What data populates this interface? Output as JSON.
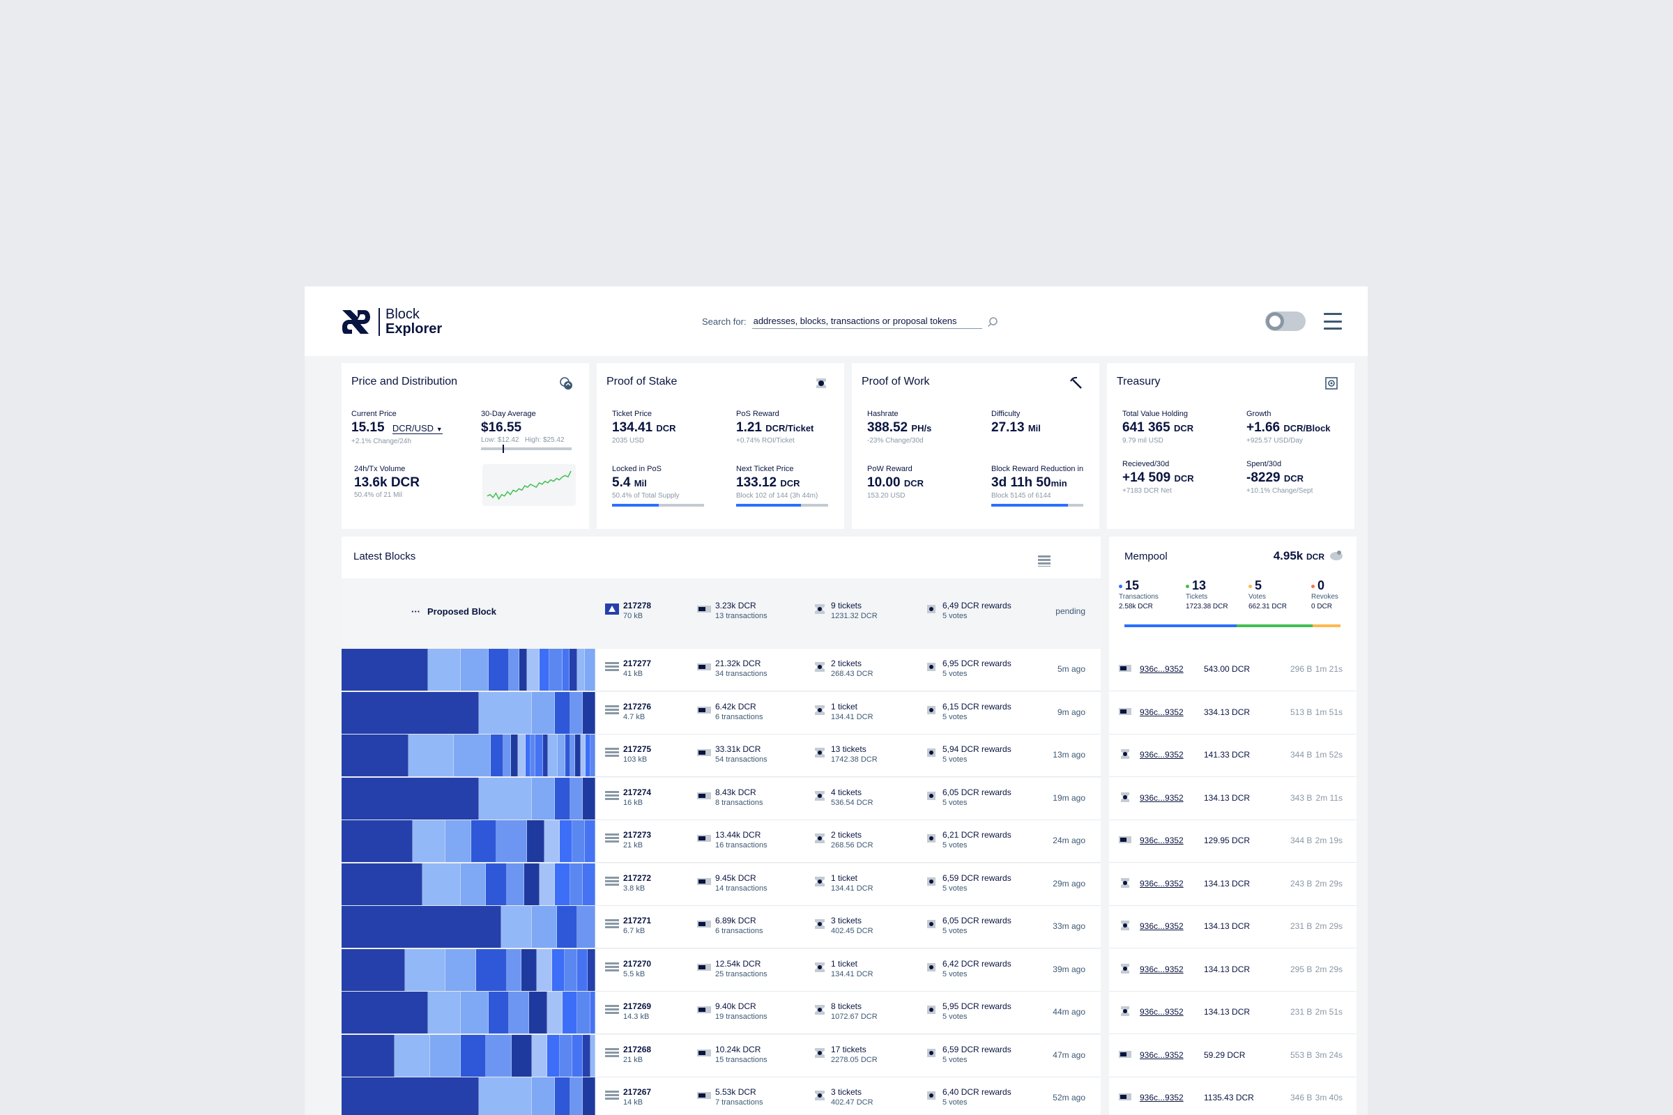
{
  "header": {
    "logo_line1": "Block",
    "logo_line2": "Explorer",
    "search_label": "Search for:",
    "search_placeholder": "addresses, blocks, transactions or proposal tokens"
  },
  "price": {
    "title": "Price and Distribution",
    "current_label": "Current Price",
    "current_value": "15.15",
    "current_unit": "DCR/USD",
    "current_sub": "+2.1% Change/24h",
    "avg_label": "30-Day Average",
    "avg_value": "$16.55",
    "avg_low": "Low: $12.42",
    "avg_high": "High: $25.42",
    "volume_label": "24h/Tx Volume",
    "volume_value": "13.6k DCR",
    "volume_sub": "50.4% of 21 Mil",
    "sparkline": [
      5,
      6,
      4,
      7,
      3,
      6,
      5,
      8,
      6,
      9,
      8,
      10,
      9,
      12,
      11,
      13,
      12,
      11,
      14,
      13,
      15,
      14,
      16,
      15,
      17,
      16,
      18,
      19,
      18,
      22
    ]
  },
  "stake": {
    "title": "Proof of Stake",
    "ticket_price_label": "Ticket Price",
    "ticket_price_value": "134.41",
    "ticket_price_unit": "DCR",
    "ticket_price_sub": "2035 USD",
    "pos_reward_label": "PoS Reward",
    "pos_reward_value": "1.21",
    "pos_reward_unit": "DCR/Ticket",
    "pos_reward_sub": "+0.74% ROI/Ticket",
    "locked_label": "Locked in PoS",
    "locked_value": "5.4",
    "locked_unit": "Mil",
    "locked_sub": "50.4% of Total Supply",
    "locked_progress": 0.504,
    "next_label": "Next Ticket Price",
    "next_value": "133.12",
    "next_unit": "DCR",
    "next_sub": "Block 102 of 144 (3h 44m)",
    "next_progress": 0.708
  },
  "work": {
    "title": "Proof of Work",
    "hashrate_label": "Hashrate",
    "hashrate_value": "388.52",
    "hashrate_unit": "PH/s",
    "hashrate_sub": "-23% Change/30d",
    "difficulty_label": "Difficulty",
    "difficulty_value": "27.13",
    "difficulty_unit": "Mil",
    "reward_label": "PoW Reward",
    "reward_value": "10.00",
    "reward_unit": "DCR",
    "reward_sub": "153.20 USD",
    "reduction_label": "Block Reward Reduction in",
    "reduction_value_d": "3d 11h 50",
    "reduction_value_unit": "min",
    "reduction_sub": "Block 5145 of 6144",
    "reduction_progress": 0.837
  },
  "treasury": {
    "title": "Treasury",
    "holding_label": "Total Value Holding",
    "holding_value": "641 365",
    "holding_unit": "DCR",
    "holding_sub": "9.79 mil USD",
    "growth_label": "Growth",
    "growth_value": "+1.66",
    "growth_unit": "DCR/Block",
    "growth_sub": "+925.57 USD/Day",
    "received_label": "Recieved/30d",
    "received_value": "+14 509",
    "received_unit": "DCR",
    "received_sub": "+7183 DCR Net",
    "spent_label": "Spent/30d",
    "spent_value": "-8229",
    "spent_unit": "DCR",
    "spent_sub": "+10.1% Change/Sept"
  },
  "latest": {
    "title": "Latest Blocks",
    "proposed": {
      "label": "Proposed Block",
      "height": "217278",
      "size": "70 kB",
      "value": "3.23k DCR",
      "txs": "13 transactions",
      "tickets": "9 tickets",
      "tickets_value": "1231.32 DCR",
      "rewards": "6,49 DCR rewards",
      "votes": "5 votes",
      "status": "pending"
    },
    "blocks": [
      {
        "height": "217277",
        "size": "41 kB",
        "value": "21.32k DCR",
        "txs": "34 transactions",
        "tickets": "2 tickets",
        "tickets_value": "268.43 DCR",
        "rewards": "6,95 DCR rewards",
        "votes": "5 votes",
        "age": "5m ago"
      },
      {
        "height": "217276",
        "size": "4.7 kB",
        "value": "6.42k DCR",
        "txs": "6 transactions",
        "tickets": "1 ticket",
        "tickets_value": "134.41 DCR",
        "rewards": "6,15 DCR rewards",
        "votes": "5 votes",
        "age": "9m ago"
      },
      {
        "height": "217275",
        "size": "103 kB",
        "value": "33.31k DCR",
        "txs": "54 transactions",
        "tickets": "13 tickets",
        "tickets_value": "1742.38 DCR",
        "rewards": "5,94 DCR rewards",
        "votes": "5 votes",
        "age": "13m ago"
      },
      {
        "height": "217274",
        "size": "16 kB",
        "value": "8.43k DCR",
        "txs": "8 transactions",
        "tickets": "4 tickets",
        "tickets_value": "536.54 DCR",
        "rewards": "6,05 DCR rewards",
        "votes": "5 votes",
        "age": "19m ago"
      },
      {
        "height": "217273",
        "size": "21 kB",
        "value": "13.44k DCR",
        "txs": "16 transactions",
        "tickets": "2 tickets",
        "tickets_value": "268.56 DCR",
        "rewards": "6,21 DCR rewards",
        "votes": "5 votes",
        "age": "24m ago"
      },
      {
        "height": "217272",
        "size": "3.8 kB",
        "value": "9.45k DCR",
        "txs": "14 transactions",
        "tickets": "1 ticket",
        "tickets_value": "134.41 DCR",
        "rewards": "6,59 DCR rewards",
        "votes": "5 votes",
        "age": "29m ago"
      },
      {
        "height": "217271",
        "size": "6.7 kB",
        "value": "6.89k DCR",
        "txs": "6 transactions",
        "tickets": "3 tickets",
        "tickets_value": "402.45 DCR",
        "rewards": "6,05 DCR rewards",
        "votes": "5 votes",
        "age": "33m ago"
      },
      {
        "height": "217270",
        "size": "5.5 kB",
        "value": "12.54k DCR",
        "txs": "25 transactions",
        "tickets": "1 ticket",
        "tickets_value": "134.41 DCR",
        "rewards": "6,42 DCR rewards",
        "votes": "5 votes",
        "age": "39m ago"
      },
      {
        "height": "217269",
        "size": "14.3 kB",
        "value": "9.40k DCR",
        "txs": "19 transactions",
        "tickets": "8 tickets",
        "tickets_value": "1072.67 DCR",
        "rewards": "5,95 DCR rewards",
        "votes": "5 votes",
        "age": "44m ago"
      },
      {
        "height": "217268",
        "size": "21 kB",
        "value": "10.24k DCR",
        "txs": "15 transactions",
        "tickets": "17 tickets",
        "tickets_value": "2278.05 DCR",
        "rewards": "6,59 DCR rewards",
        "votes": "5 votes",
        "age": "47m ago"
      },
      {
        "height": "217267",
        "size": "14 kB",
        "value": "5.53k DCR",
        "txs": "7 transactions",
        "tickets": "3 tickets",
        "tickets_value": "402.47 DCR",
        "rewards": "6,40 DCR rewards",
        "votes": "5 votes",
        "age": "52m ago"
      }
    ]
  },
  "mempool": {
    "title": "Mempool",
    "total_value": "4.95k",
    "total_unit": "DCR",
    "stats": [
      {
        "count": "15",
        "label": "Transactions",
        "value": "2.58k DCR",
        "color": "#2970FF"
      },
      {
        "count": "13",
        "label": "Tickets",
        "value": "1723.38 DCR",
        "color": "#41BF53"
      },
      {
        "count": "5",
        "label": "Votes",
        "value": "662.31 DCR",
        "color": "#FFB84D"
      },
      {
        "count": "0",
        "label": "Revokes",
        "value": "0 DCR",
        "color": "#FD714B"
      }
    ],
    "bar_shares": [
      0.52,
      0.35,
      0.13
    ],
    "rows": [
      {
        "hash": "936c...9352",
        "amount": "543.00 DCR",
        "size": "296 B",
        "time": "1m 21s",
        "kind": "tx"
      },
      {
        "hash": "936c...9352",
        "amount": "334.13 DCR",
        "size": "513 B",
        "time": "1m 51s",
        "kind": "tx"
      },
      {
        "hash": "936c...9352",
        "amount": "141.33 DCR",
        "size": "344 B",
        "time": "1m 52s",
        "kind": "ticket"
      },
      {
        "hash": "936c...9352",
        "amount": "134.13 DCR",
        "size": "343 B",
        "time": "2m 11s",
        "kind": "ticket"
      },
      {
        "hash": "936c...9352",
        "amount": "129.95 DCR",
        "size": "344 B",
        "time": "2m 19s",
        "kind": "tx"
      },
      {
        "hash": "936c...9352",
        "amount": "134.13 DCR",
        "size": "243 B",
        "time": "2m 29s",
        "kind": "ticket"
      },
      {
        "hash": "936c...9352",
        "amount": "134.13 DCR",
        "size": "231 B",
        "time": "2m 29s",
        "kind": "ticket"
      },
      {
        "hash": "936c...9352",
        "amount": "134.13 DCR",
        "size": "295 B",
        "time": "2m 29s",
        "kind": "ticket"
      },
      {
        "hash": "936c...9352",
        "amount": "134.13 DCR",
        "size": "231 B",
        "time": "2m 51s",
        "kind": "ticket"
      },
      {
        "hash": "936c...9352",
        "amount": "59.29 DCR",
        "size": "553 B",
        "time": "3m 24s",
        "kind": "tx"
      },
      {
        "hash": "936c...9352",
        "amount": "1135.43 DCR",
        "size": "346 B",
        "time": "3m 40s",
        "kind": "tx"
      }
    ]
  },
  "colors": {
    "navy": "#091440",
    "blue_dark": "#2540AA",
    "blue": "#3D6EF7",
    "blue_mid": "#6D96F2",
    "blue_light": "#93B8F7",
    "green": "#41BF53"
  }
}
